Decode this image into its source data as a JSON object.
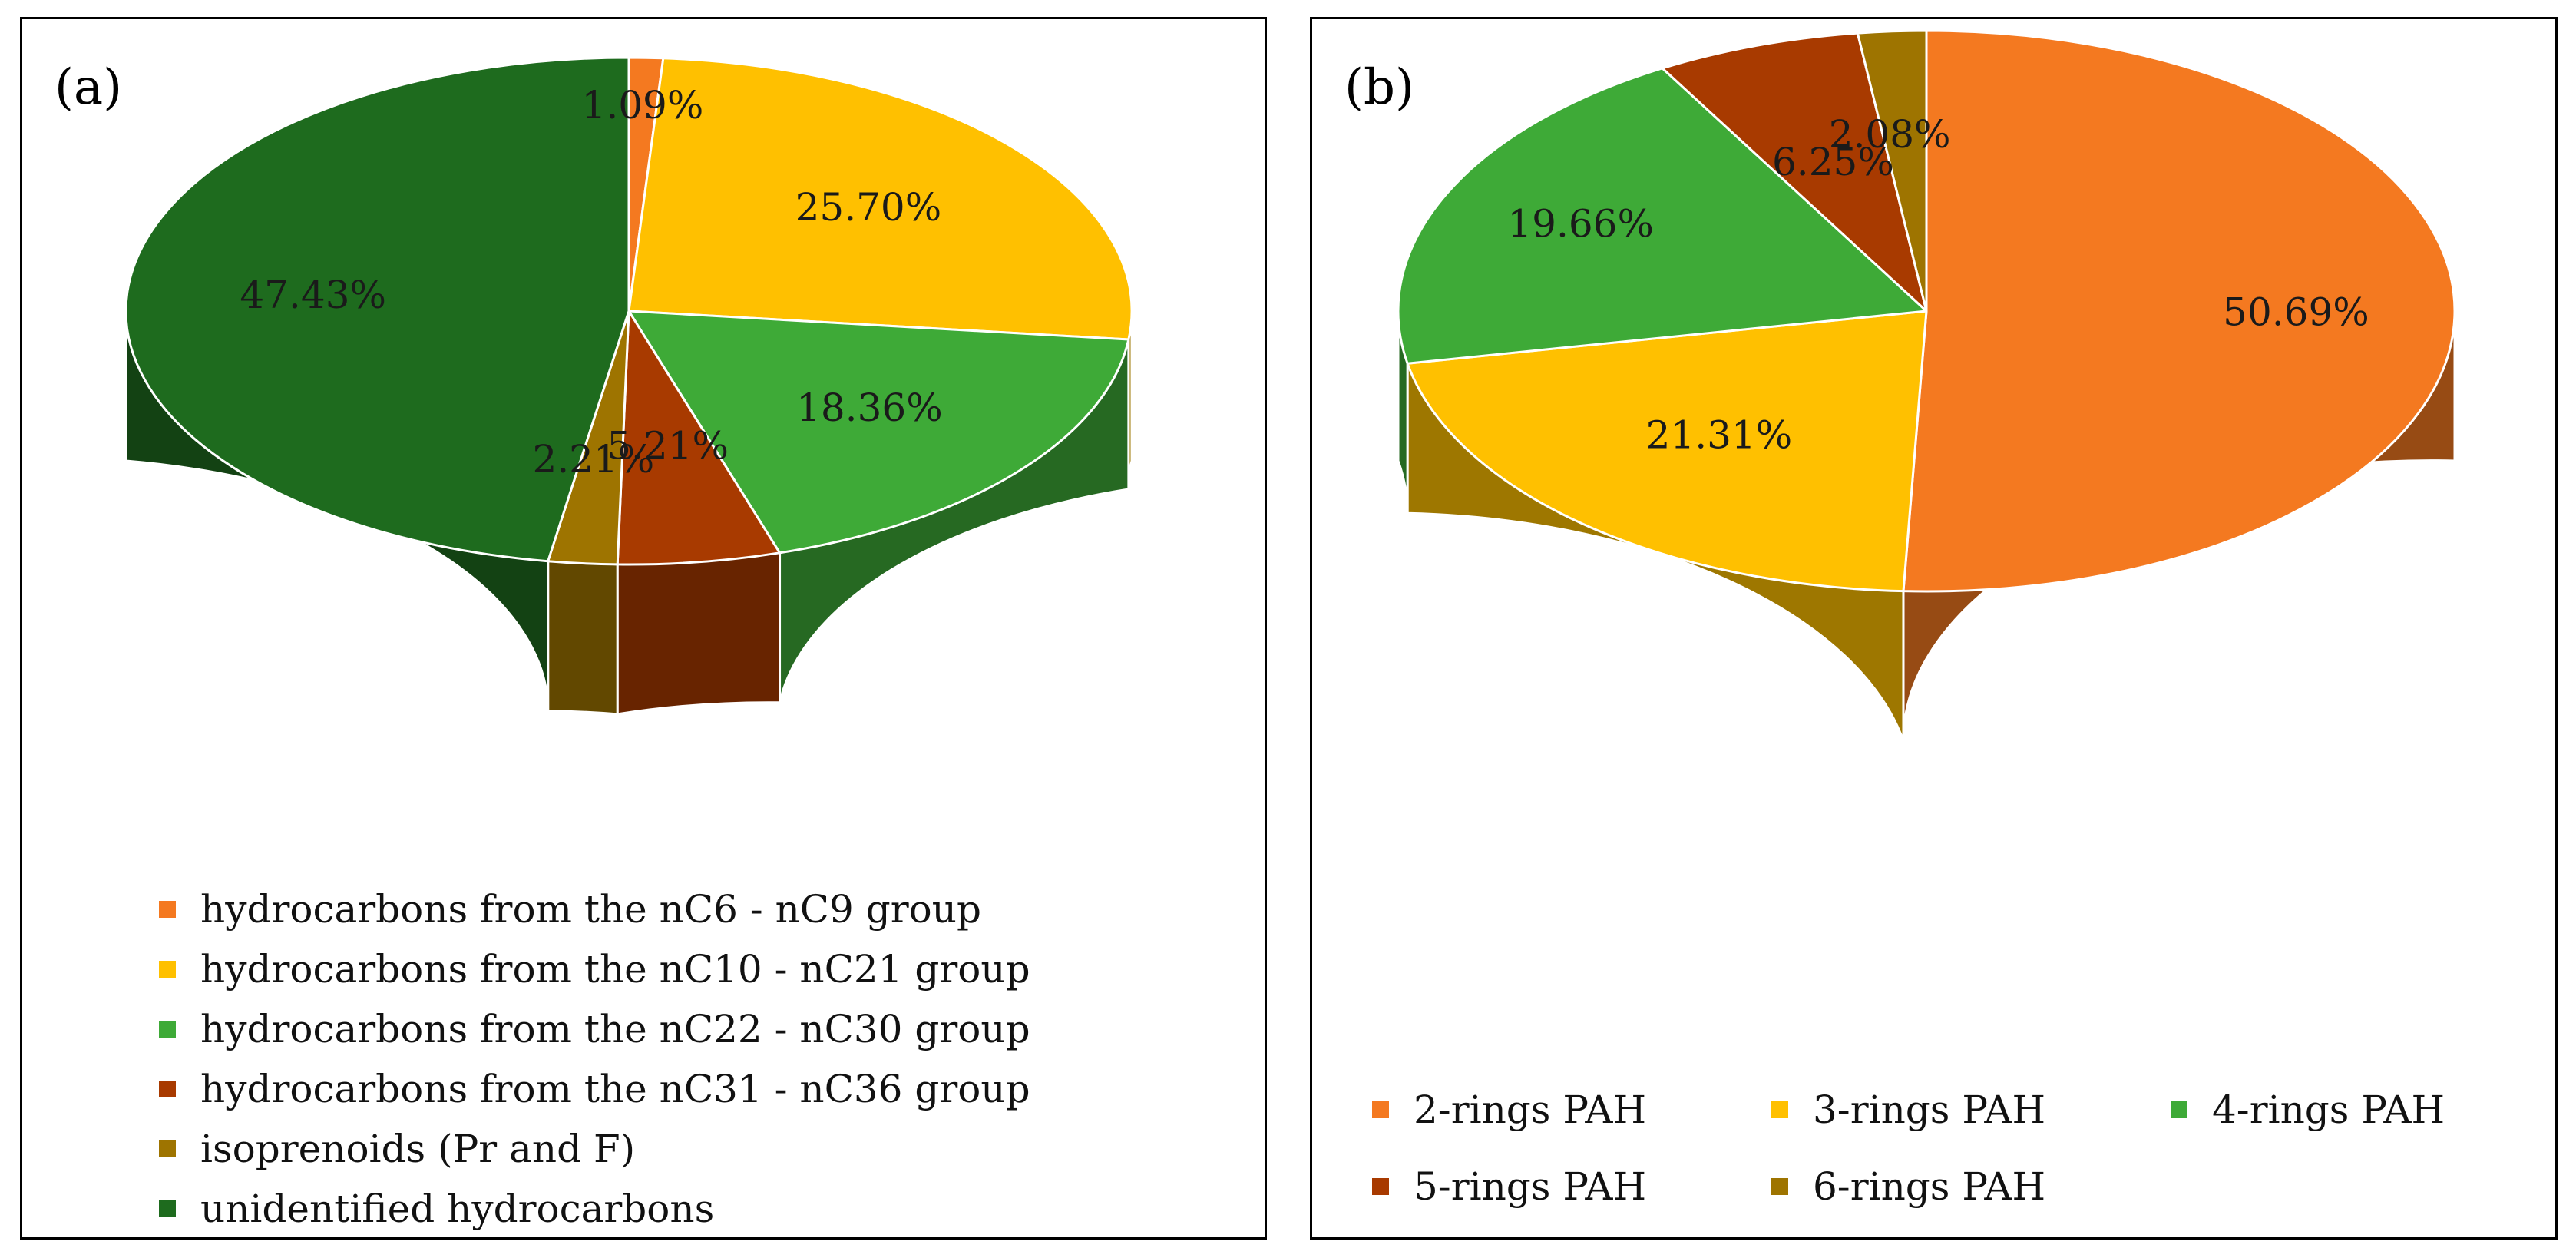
{
  "chart_data": [
    {
      "type": "pie",
      "panel_label": "(a)",
      "slices": [
        {
          "label": "hydrocarbons from the nC6 - nC9 group",
          "value": 1.09,
          "value_label": "1.09%",
          "color": "#F47920"
        },
        {
          "label": "hydrocarbons from the nC10 - nC21 group",
          "value": 25.7,
          "value_label": "25.70%",
          "color": "#FFC000"
        },
        {
          "label": "hydrocarbons from the nC22 - nC30 group",
          "value": 18.36,
          "value_label": "18.36%",
          "color": "#3EAA37"
        },
        {
          "label": "hydrocarbons from the nC31 - nC36 group",
          "value": 5.21,
          "value_label": "5.21%",
          "color": "#A83A00"
        },
        {
          "label": "isoprenoids (Pr and F)",
          "value": 2.21,
          "value_label": "2.21%",
          "color": "#9E7400"
        },
        {
          "label": "unidentified hydrocarbons",
          "value": 47.43,
          "value_label": "47.43%",
          "color": "#1E6B1E"
        }
      ]
    },
    {
      "type": "pie",
      "panel_label": "(b)",
      "slices": [
        {
          "label": "2-rings PAH",
          "value": 50.69,
          "value_label": "50.69%",
          "color": "#F47920"
        },
        {
          "label": "3-rings PAH",
          "value": 21.31,
          "value_label": "21.31%",
          "color": "#FFC000"
        },
        {
          "label": "4-rings PAH",
          "value": 19.66,
          "value_label": "19.66%",
          "color": "#3EAA37"
        },
        {
          "label": "5-rings PAH",
          "value": 6.25,
          "value_label": "6.25%",
          "color": "#A83A00"
        },
        {
          "label": "6-rings PAH",
          "value": 2.08,
          "value_label": "2.08%",
          "color": "#9E7400"
        }
      ]
    }
  ]
}
